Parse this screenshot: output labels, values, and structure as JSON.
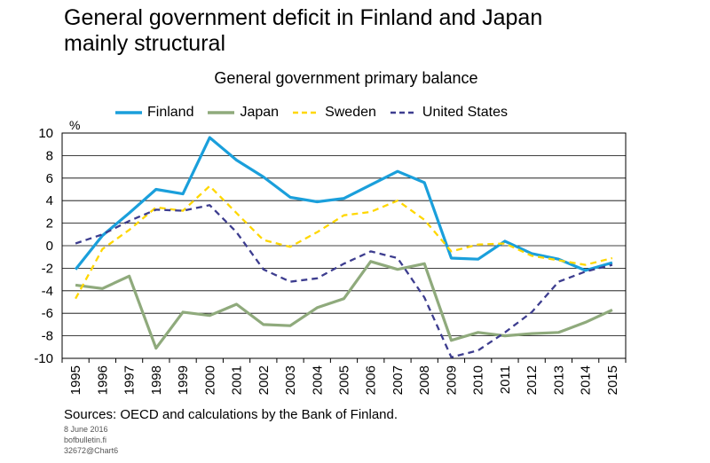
{
  "header": {
    "title_line1": "General government deficit in Finland and Japan",
    "title_line2": "mainly structural"
  },
  "footer": {
    "sources": "Sources: OECD and calculations by the Bank of Finland.",
    "date": "8 June 2016",
    "site": "bofbulletin.fi",
    "code": "32672@Chart6"
  },
  "chart_data": {
    "type": "line",
    "title": "General government primary balance",
    "ylabel": "%",
    "xlabel": "",
    "ylim": [
      -10,
      10
    ],
    "yticks": [
      10,
      8,
      6,
      4,
      2,
      0,
      -2,
      -4,
      -6,
      -8,
      -10
    ],
    "categories": [
      "1995",
      "1996",
      "1997",
      "1998",
      "1999",
      "2000",
      "2001",
      "2002",
      "2003",
      "2004",
      "2005",
      "2006",
      "2007",
      "2008",
      "2009",
      "2010",
      "2011",
      "2012",
      "2013",
      "2014",
      "2015"
    ],
    "grid": true,
    "legend_position": "top",
    "series": [
      {
        "name": "Finland",
        "color": "#1a9fdb",
        "dash": "solid",
        "values": [
          -2.1,
          0.9,
          2.9,
          5.0,
          4.6,
          9.6,
          7.6,
          6.1,
          4.3,
          3.9,
          4.2,
          5.4,
          6.6,
          5.6,
          -1.1,
          -1.2,
          0.4,
          -0.7,
          -1.2,
          -2.2,
          -1.5
        ]
      },
      {
        "name": "Japan",
        "color": "#8faa7c",
        "dash": "solid",
        "values": [
          -3.5,
          -3.8,
          -2.7,
          -9.1,
          -5.9,
          -6.2,
          -5.2,
          -7.0,
          -7.1,
          -5.5,
          -4.7,
          -1.4,
          -2.1,
          -1.6,
          -8.4,
          -7.7,
          -8.0,
          -7.8,
          -7.7,
          -6.8,
          -5.7
        ]
      },
      {
        "name": "Sweden",
        "color": "#ffd700",
        "dash": "dashed",
        "values": [
          -4.7,
          -0.3,
          1.4,
          3.4,
          3.1,
          5.3,
          2.9,
          0.5,
          -0.1,
          1.2,
          2.7,
          3.0,
          4.0,
          2.3,
          -0.5,
          0.1,
          0.2,
          -0.9,
          -1.3,
          -1.7,
          -1.1
        ]
      },
      {
        "name": "United States",
        "color": "#3d3d8f",
        "dash": "dashed",
        "values": [
          0.2,
          1.0,
          2.2,
          3.2,
          3.1,
          3.6,
          1.2,
          -2.1,
          -3.2,
          -2.9,
          -1.6,
          -0.5,
          -1.1,
          -4.6,
          -9.9,
          -9.3,
          -7.7,
          -5.9,
          -3.2,
          -2.3,
          -1.7
        ]
      }
    ]
  }
}
